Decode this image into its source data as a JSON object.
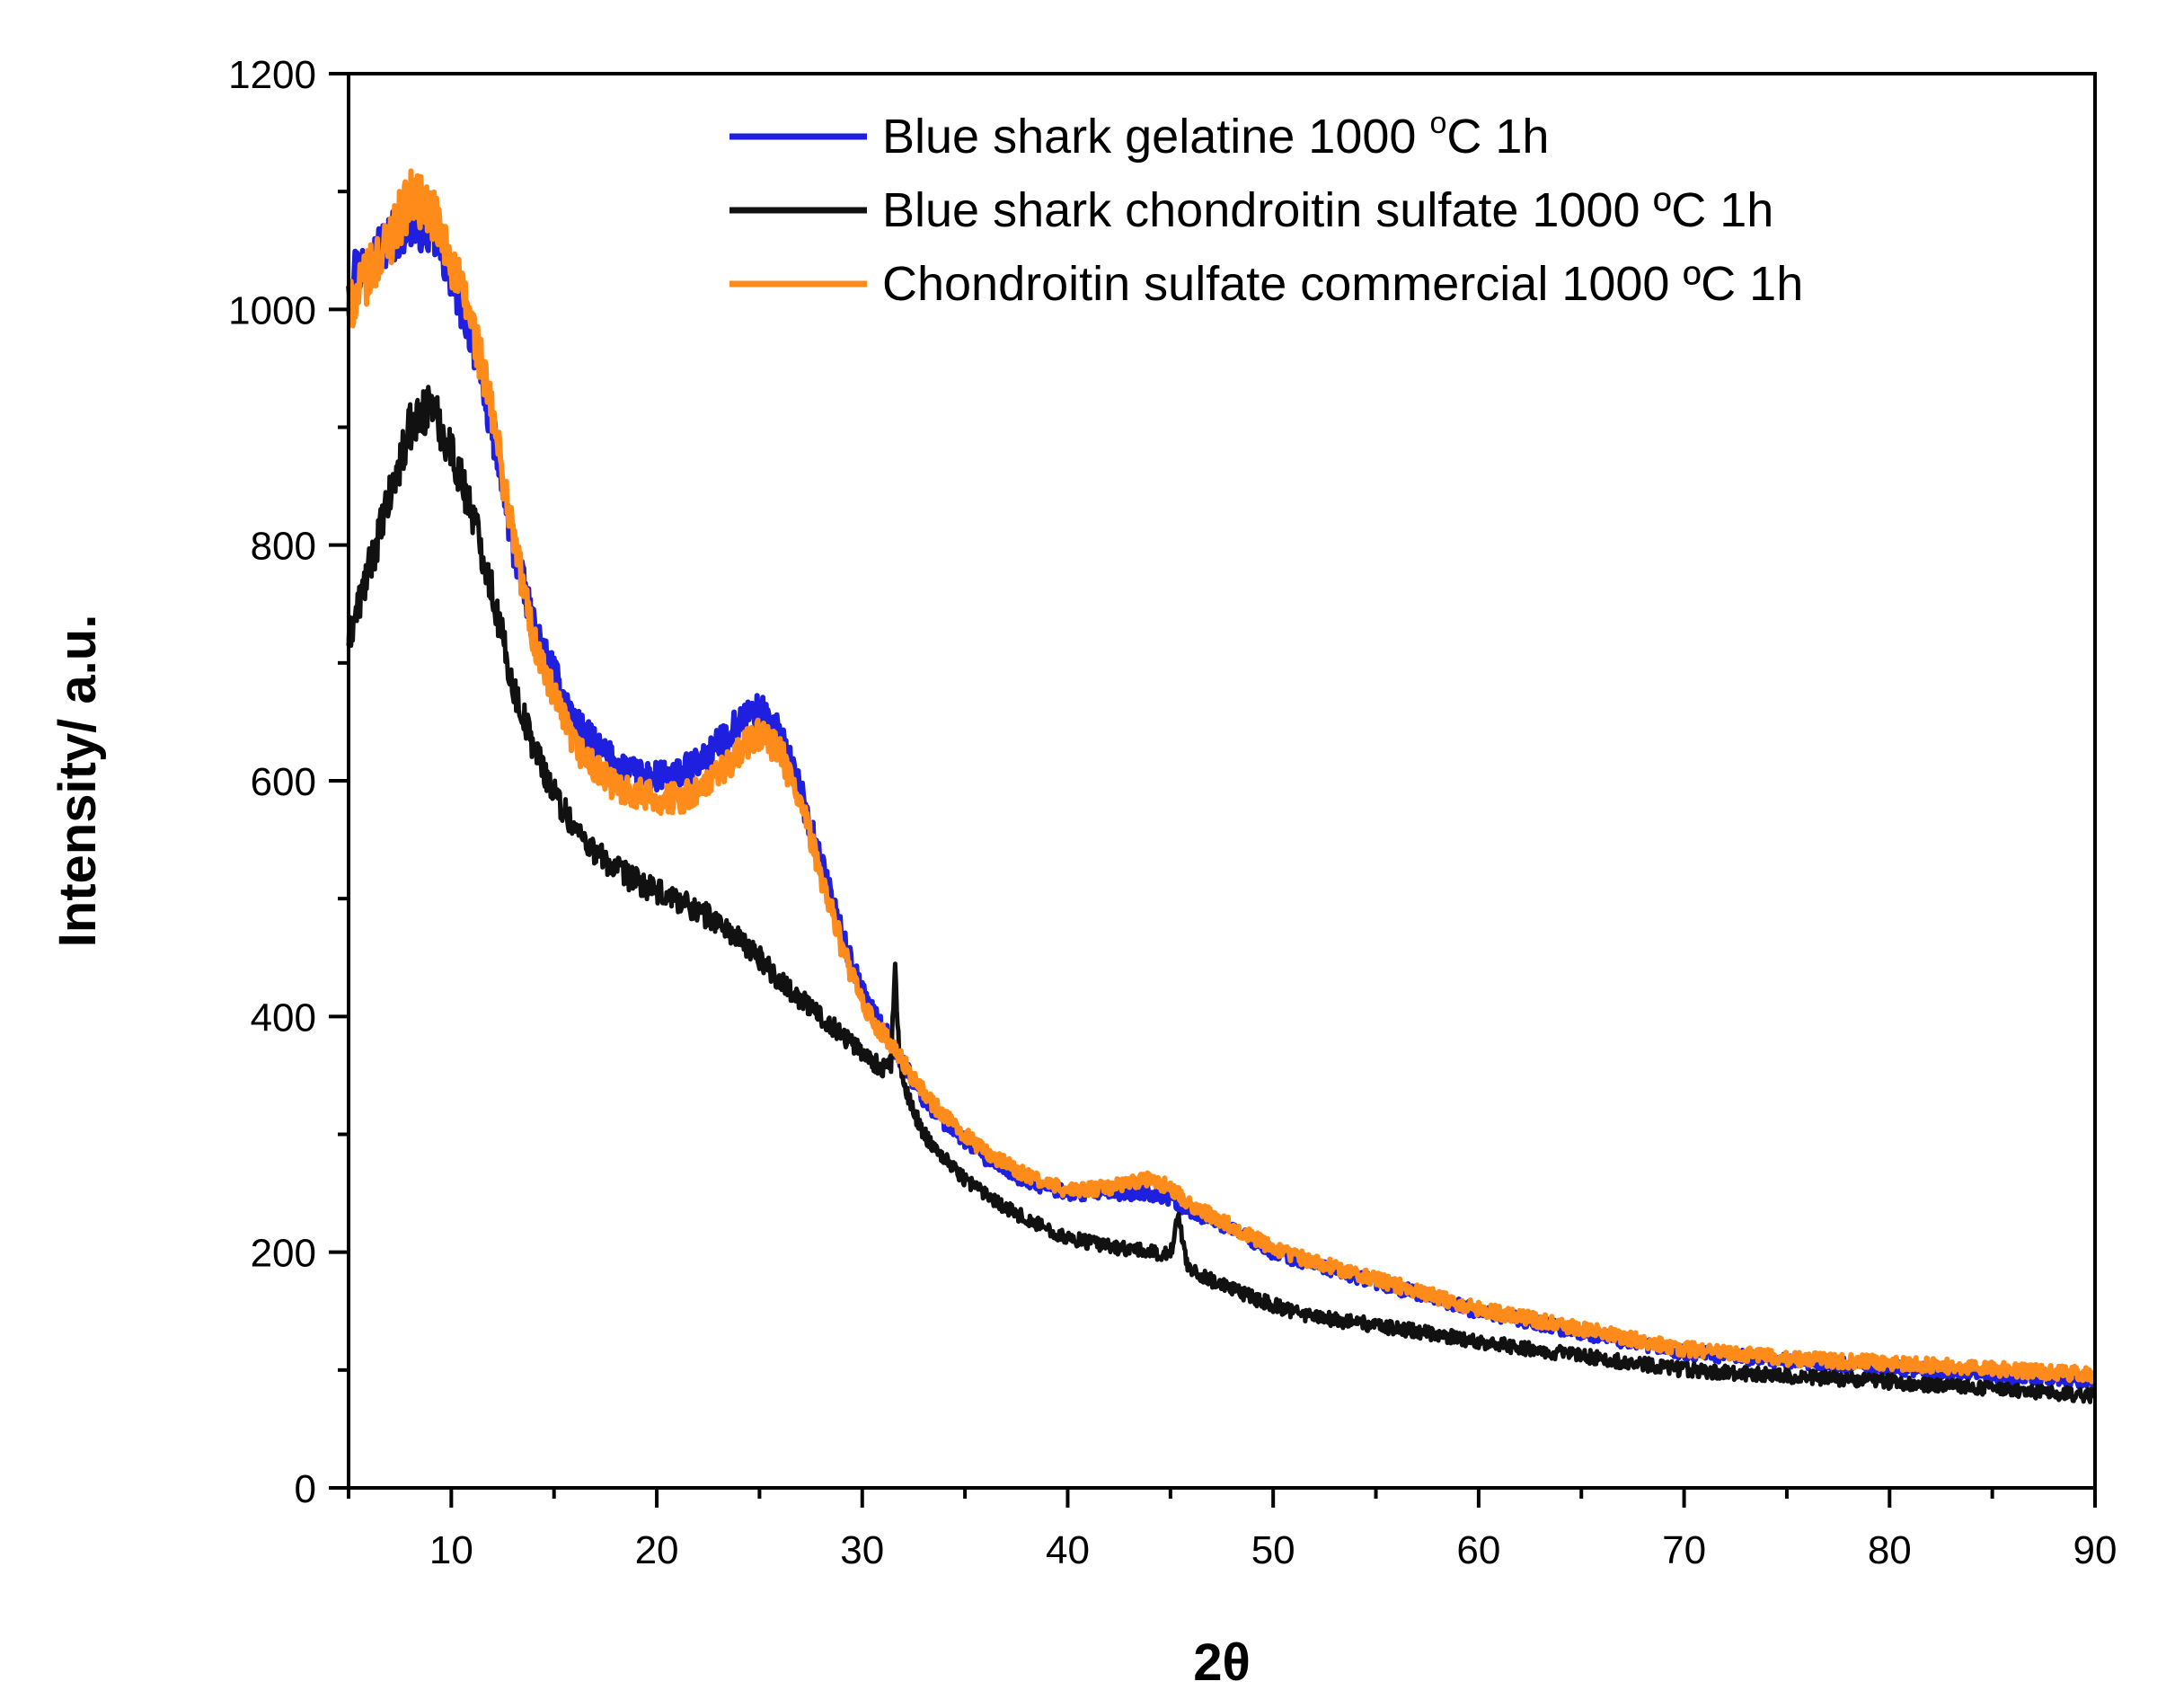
{
  "chart_data": {
    "type": "line",
    "title": "",
    "xlabel": "2θ",
    "ylabel": "Intensity/ a.u.",
    "xlim": [
      5,
      90
    ],
    "ylim": [
      0,
      1200
    ],
    "xticks": [
      10,
      20,
      30,
      40,
      50,
      60,
      70,
      80,
      90
    ],
    "yticks": [
      0,
      200,
      400,
      600,
      800,
      1000,
      1200
    ],
    "xtick_labels": [
      "10",
      "20",
      "30",
      "40",
      "50",
      "60",
      "70",
      "80",
      "90"
    ],
    "ytick_labels": [
      "0",
      "200",
      "400",
      "600",
      "800",
      "1000",
      "1200"
    ],
    "grid": false,
    "legend_position": "top-right",
    "series": [
      {
        "name": "Blue shark gelatine 1000 °C 1h",
        "legend_label": "Blue shark gelatine 1000 ",
        "legend_sup": "o",
        "legend_suffix": "C 1h",
        "color": "#1f1fe0",
        "x": [
          5,
          6,
          7,
          8,
          9,
          10,
          11,
          12,
          13,
          14,
          15,
          16,
          17,
          18,
          19,
          20,
          21,
          22,
          23,
          24,
          25,
          26,
          27,
          28,
          29,
          30,
          31,
          32,
          33,
          34,
          35,
          36,
          38,
          40,
          42,
          44,
          45,
          46,
          48,
          50,
          52,
          54,
          56,
          58,
          60,
          65,
          70,
          75,
          80,
          85,
          90
        ],
        "y": [
          1030,
          1040,
          1060,
          1075,
          1070,
          1030,
          980,
          900,
          800,
          730,
          690,
          650,
          630,
          615,
          605,
          603,
          605,
          615,
          630,
          650,
          660,
          640,
          590,
          530,
          470,
          420,
          390,
          360,
          330,
          310,
          295,
          280,
          260,
          250,
          250,
          250,
          245,
          235,
          220,
          200,
          190,
          180,
          170,
          160,
          150,
          132,
          115,
          108,
          102,
          96,
          90
        ]
      },
      {
        "name": "Blue shark chondroitin sulfate 1000 ºC 1h",
        "legend_label": "Blue shark chondroitin sulfate 1000 ºC 1h",
        "color": "#111111",
        "x": [
          5,
          6,
          7,
          8,
          9,
          10,
          11,
          12,
          13,
          14,
          15,
          16,
          17,
          18,
          19,
          20,
          21,
          22,
          23,
          24,
          25,
          26,
          27,
          28,
          29,
          30,
          31,
          31.4,
          31.6,
          31.8,
          32,
          32.5,
          33,
          34,
          35,
          36,
          37,
          38,
          40,
          42,
          44,
          45,
          45.4,
          45.8,
          46.5,
          48,
          50,
          52,
          55,
          58,
          60,
          65,
          70,
          75,
          80,
          85,
          90
        ],
        "y": [
          720,
          780,
          840,
          900,
          920,
          880,
          830,
          760,
          680,
          630,
          590,
          560,
          540,
          525,
          515,
          505,
          500,
          490,
          480,
          465,
          450,
          430,
          415,
          400,
          385,
          370,
          355,
          360,
          440,
          370,
          340,
          320,
          300,
          280,
          262,
          250,
          238,
          228,
          212,
          205,
          200,
          198,
          232,
          190,
          180,
          168,
          155,
          145,
          138,
          130,
          124,
          112,
          100,
          95,
          90,
          84,
          78
        ]
      },
      {
        "name": "Chondroitin sulfate commercial 1000 ºC 1h",
        "legend_label": "Chondroitin sulfate commercial 1000 ºC 1h",
        "color": "#ff8c1a",
        "x": [
          5,
          6,
          7,
          8,
          9,
          10,
          11,
          12,
          13,
          14,
          15,
          16,
          17,
          18,
          19,
          20,
          21,
          22,
          23,
          24,
          25,
          26,
          27,
          28,
          29,
          30,
          31,
          32,
          33,
          34,
          35,
          36,
          38,
          40,
          42,
          44,
          45,
          46,
          48,
          50,
          52,
          54,
          56,
          58,
          60,
          65,
          70,
          75,
          80,
          85,
          90
        ],
        "y": [
          1000,
          1030,
          1060,
          1095,
          1085,
          1040,
          990,
          910,
          810,
          720,
          670,
          630,
          610,
          595,
          590,
          585,
          585,
          590,
          605,
          625,
          640,
          625,
          580,
          520,
          460,
          410,
          385,
          360,
          335,
          315,
          300,
          285,
          265,
          252,
          255,
          262,
          255,
          240,
          222,
          203,
          192,
          182,
          172,
          162,
          152,
          135,
          118,
          110,
          106,
          101,
          96
        ]
      }
    ]
  }
}
